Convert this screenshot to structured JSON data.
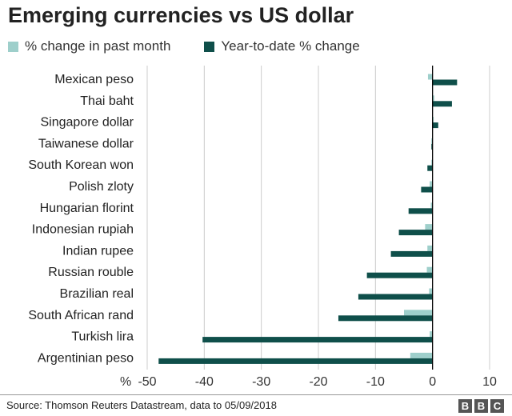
{
  "title": "Emerging currencies vs US dollar",
  "source": "Source: Thomson Reuters Datastream, data to 05/09/2018",
  "logo": "BBC",
  "colors": {
    "series_month": "#9ecfcb",
    "series_ytd": "#0f4f4a",
    "grid": "#cccccc",
    "zero_line": "#000000"
  },
  "chart_data": {
    "type": "bar",
    "orientation": "horizontal",
    "title": "Emerging currencies vs US dollar",
    "xlabel": "%",
    "xlim": [
      -50,
      10
    ],
    "xticks": [
      -50,
      -40,
      -30,
      -20,
      -10,
      0,
      10
    ],
    "x_unit_label": "%",
    "grid": true,
    "legend_position": "top",
    "categories": [
      "Mexican peso",
      "Thai baht",
      "Singapore dollar",
      "Taiwanese dollar",
      "South Korean won",
      "Polish zloty",
      "Hungarian florint",
      "Indonesian rupiah",
      "Indian rupee",
      "Russian rouble",
      "Brazilian real",
      "South African rand",
      "Turkish lira",
      "Argentinian peso"
    ],
    "series": [
      {
        "name": "% change in past month",
        "values": [
          -0.8,
          0.3,
          0.2,
          -0.2,
          -0.2,
          -0.5,
          -0.3,
          -1.3,
          -0.9,
          -1.0,
          -0.6,
          -5.0,
          -0.5,
          -3.9
        ]
      },
      {
        "name": "Year-to-date % change",
        "values": [
          4.3,
          3.4,
          1.0,
          -0.2,
          -0.9,
          -2.0,
          -4.2,
          -5.9,
          -7.3,
          -11.5,
          -13.0,
          -16.5,
          -40.3,
          -48.0
        ]
      }
    ]
  }
}
